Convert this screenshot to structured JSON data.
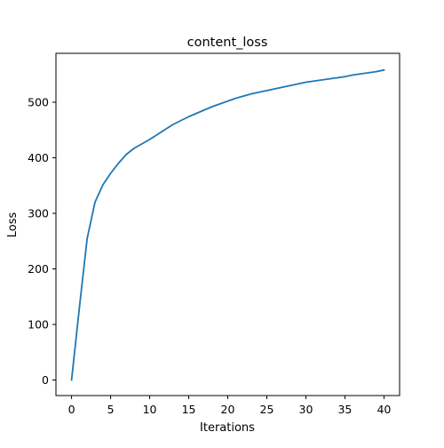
{
  "chart_data": {
    "type": "line",
    "title": "content_loss",
    "xlabel": "Iterations",
    "ylabel": "Loss",
    "xlim": [
      -2,
      42
    ],
    "ylim": [
      -28,
      588
    ],
    "xticks": [
      0,
      5,
      10,
      15,
      20,
      25,
      30,
      35,
      40
    ],
    "yticks": [
      0,
      100,
      200,
      300,
      400,
      500
    ],
    "grid": false,
    "series": [
      {
        "color": "#1f77b4",
        "x": [
          0,
          1,
          2,
          3,
          4,
          5,
          6,
          7,
          8,
          9,
          10,
          11,
          12,
          13,
          14,
          15,
          16,
          17,
          18,
          19,
          20,
          21,
          22,
          23,
          24,
          25,
          26,
          27,
          28,
          29,
          30,
          31,
          32,
          33,
          34,
          35,
          36,
          37,
          38,
          39,
          40
        ],
        "values": [
          0,
          130,
          255,
          320,
          351,
          372,
          390,
          406,
          417,
          425,
          433,
          442,
          451,
          460,
          467,
          474,
          480,
          486,
          492,
          497,
          502,
          507,
          511,
          515,
          518,
          521,
          524,
          527,
          530,
          533,
          536,
          538,
          540,
          542,
          544,
          546,
          549,
          551,
          553,
          555,
          558
        ]
      }
    ]
  }
}
